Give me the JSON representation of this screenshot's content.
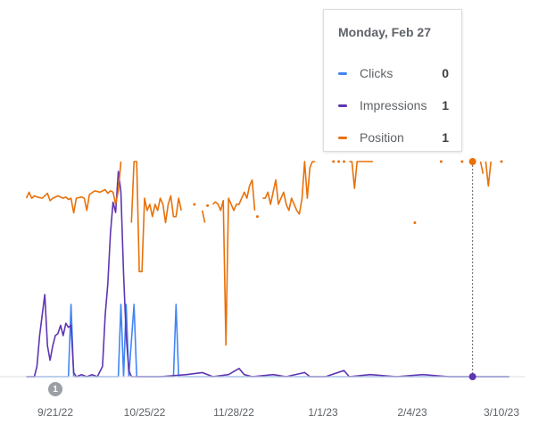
{
  "tooltip": {
    "date": "Monday, Feb 27",
    "rows": [
      {
        "label": "Clicks",
        "value": "0",
        "color": "#4285f4"
      },
      {
        "label": "Impressions",
        "value": "1",
        "color": "#5e35b1"
      },
      {
        "label": "Position",
        "value": "1",
        "color": "#e8710a"
      }
    ]
  },
  "annotation": {
    "label": "1"
  },
  "chart_data": {
    "type": "line",
    "x_tick_labels": [
      "9/21/22",
      "10/25/22",
      "11/28/22",
      "1/1/23",
      "2/4/23",
      "3/10/23"
    ],
    "x_tick_days": [
      0,
      34,
      68,
      102,
      136,
      170
    ],
    "x_range_days": [
      -11,
      173
    ],
    "hover_day": 159,
    "series": [
      {
        "name": "Clicks",
        "color": "#4285f4",
        "values": [
          [
            -11,
            0
          ],
          [
            -1,
            0
          ],
          [
            0,
            0
          ],
          [
            5,
            0
          ],
          [
            6,
            1
          ],
          [
            7,
            0
          ],
          [
            16,
            0
          ],
          [
            24,
            0
          ],
          [
            25,
            1
          ],
          [
            26,
            0
          ],
          [
            27,
            1
          ],
          [
            28,
            0
          ],
          [
            30,
            1
          ],
          [
            31,
            0
          ],
          [
            45,
            0
          ],
          [
            46,
            1
          ],
          [
            47,
            0
          ],
          [
            100,
            0
          ],
          [
            173,
            0
          ]
        ]
      },
      {
        "name": "Impressions",
        "color": "#5e35b1",
        "values": [
          [
            -11,
            0
          ],
          [
            -8,
            0
          ],
          [
            -7,
            0.05
          ],
          [
            -6,
            0.2
          ],
          [
            -5,
            0.3
          ],
          [
            -4,
            0.4
          ],
          [
            -3,
            0.15
          ],
          [
            -2,
            0.08
          ],
          [
            -1,
            0.15
          ],
          [
            0,
            0.2
          ],
          [
            1,
            0.21
          ],
          [
            2,
            0.25
          ],
          [
            3,
            0.2
          ],
          [
            4,
            0.26
          ],
          [
            5,
            0.24
          ],
          [
            6,
            0.25
          ],
          [
            7,
            0.02
          ],
          [
            8,
            0
          ],
          [
            10,
            0.01
          ],
          [
            12,
            0
          ],
          [
            14,
            0.01
          ],
          [
            16,
            0
          ],
          [
            18,
            0.05
          ],
          [
            19,
            0.3
          ],
          [
            20,
            0.45
          ],
          [
            21,
            0.7
          ],
          [
            22,
            0.85
          ],
          [
            23,
            0.8
          ],
          [
            24,
            1.0
          ],
          [
            25,
            0.9
          ],
          [
            26,
            0.5
          ],
          [
            27,
            0.2
          ],
          [
            28,
            0.03
          ],
          [
            29,
            0
          ],
          [
            40,
            0
          ],
          [
            50,
            0.01
          ],
          [
            56,
            0.02
          ],
          [
            60,
            0
          ],
          [
            66,
            0.01
          ],
          [
            70,
            0.04
          ],
          [
            72,
            0.01
          ],
          [
            75,
            0
          ],
          [
            83,
            0.01
          ],
          [
            88,
            0
          ],
          [
            95,
            0.02
          ],
          [
            97,
            0
          ],
          [
            103,
            0
          ],
          [
            110,
            0.03
          ],
          [
            112,
            0
          ],
          [
            120,
            0.01
          ],
          [
            130,
            0
          ],
          [
            140,
            0.01
          ],
          [
            150,
            0
          ],
          [
            159,
            0
          ],
          [
            173,
            0
          ]
        ]
      },
      {
        "name": "Position",
        "color": "#e8710a",
        "values": [
          [
            -11,
            4
          ],
          [
            -10,
            3.5
          ],
          [
            -9,
            4
          ],
          [
            -8,
            3.8
          ],
          [
            -7,
            3.9
          ],
          [
            -5,
            4
          ],
          [
            -3,
            3.6
          ],
          [
            -2,
            4.2
          ],
          [
            -1,
            4
          ],
          [
            1,
            3.8
          ],
          [
            3,
            4
          ],
          [
            4,
            3.9
          ],
          [
            5,
            4.1
          ],
          [
            6,
            4
          ],
          [
            7,
            5.2
          ],
          [
            8,
            4
          ],
          [
            10,
            3.9
          ],
          [
            11,
            4
          ],
          [
            12,
            5
          ],
          [
            13,
            3.7
          ],
          [
            15,
            3.4
          ],
          [
            17,
            3.5
          ],
          [
            19,
            3.3
          ],
          [
            20,
            3.6
          ],
          [
            21,
            3.4
          ],
          [
            22,
            3.5
          ],
          [
            23,
            4.5
          ],
          [
            24,
            3.4
          ],
          [
            25,
            1.0
          ],
          [
            null,
            null
          ],
          [
            29,
            6
          ],
          [
            30,
            1.0
          ],
          [
            31,
            1.0
          ],
          [
            32,
            10
          ],
          [
            33,
            10
          ],
          [
            34,
            4
          ],
          [
            35,
            5
          ],
          [
            36,
            4.5
          ],
          [
            37,
            5.5
          ],
          [
            38,
            4.5
          ],
          [
            39,
            5
          ],
          [
            40,
            4
          ],
          [
            41,
            4.5
          ],
          [
            42,
            6
          ],
          [
            43,
            4.5
          ],
          [
            44,
            3.8
          ],
          [
            45,
            5.5
          ],
          [
            46,
            5.5
          ],
          [
            47,
            4
          ],
          [
            48,
            5
          ],
          [
            null,
            null
          ],
          [
            56,
            5
          ],
          [
            57,
            6
          ],
          [
            null,
            null
          ],
          [
            60,
            4.5
          ],
          [
            61,
            4.3
          ],
          [
            62,
            4.5
          ],
          [
            63,
            5
          ],
          [
            64,
            4.2
          ],
          [
            65,
            16
          ],
          [
            66,
            4
          ],
          [
            67,
            4.5
          ],
          [
            68,
            5
          ],
          [
            69,
            4.5
          ],
          [
            70,
            4.5
          ],
          [
            71,
            4
          ],
          [
            72,
            3.5
          ],
          [
            73,
            4
          ],
          [
            74,
            3
          ],
          [
            75,
            2.5
          ],
          [
            76,
            5
          ],
          [
            null,
            null
          ],
          [
            79,
            4
          ],
          [
            80,
            4
          ],
          [
            81,
            3.5
          ],
          [
            82,
            4.5
          ],
          [
            83,
            3.5
          ],
          [
            84,
            2.5
          ],
          [
            85,
            4.5
          ],
          [
            86,
            4
          ],
          [
            87,
            3.5
          ],
          [
            88,
            4.5
          ],
          [
            89,
            5
          ],
          [
            90,
            4
          ],
          [
            91,
            4.5
          ],
          [
            92,
            5
          ],
          [
            93,
            5.3
          ],
          [
            94,
            4
          ],
          [
            95,
            1.0
          ],
          [
            96,
            4
          ],
          [
            97,
            1.5
          ],
          [
            98,
            1
          ],
          [
            99,
            1
          ],
          [
            null,
            null
          ],
          [
            112,
            1
          ],
          [
            113,
            1
          ],
          [
            114,
            3.2
          ],
          [
            115,
            1
          ],
          [
            116,
            1
          ],
          [
            117,
            1
          ],
          [
            118,
            1
          ],
          [
            119,
            1
          ],
          [
            120,
            1
          ],
          [
            121,
            1
          ],
          [
            null,
            null
          ],
          [
            162,
            1
          ],
          [
            163,
            2
          ],
          [
            null,
            null
          ],
          [
            164,
            1
          ],
          [
            165,
            3
          ],
          [
            166,
            1
          ]
        ]
      },
      {
        "name": "Position-points",
        "color": "#e8710a",
        "values": [
          [
            53,
            4.5
          ],
          [
            58,
            4.6
          ],
          [
            77,
            5.5
          ],
          [
            106,
            1
          ],
          [
            108,
            1
          ],
          [
            110,
            1
          ],
          [
            137,
            6
          ],
          [
            147,
            1
          ],
          [
            155,
            1
          ],
          [
            159,
            1
          ],
          [
            170,
            1
          ]
        ]
      }
    ]
  }
}
